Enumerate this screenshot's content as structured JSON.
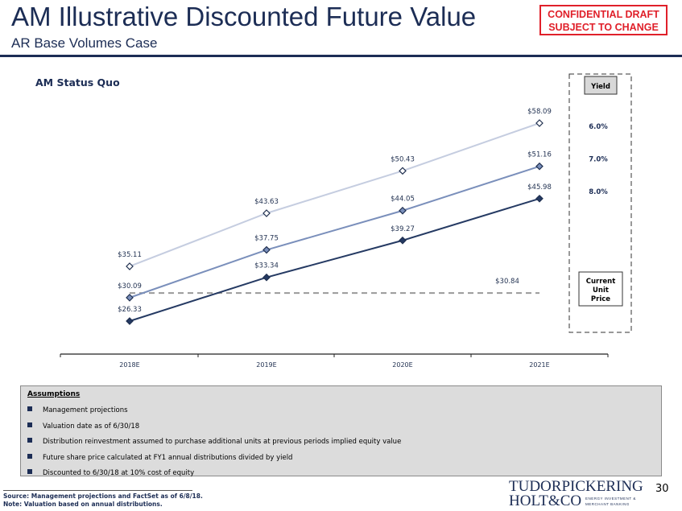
{
  "header": {
    "title": "AM Illustrative Discounted Future Value",
    "subtitle": "AR Base Volumes Case",
    "confidential_line1": "CONFIDENTIAL DRAFT",
    "confidential_line2": "SUBJECT TO CHANGE"
  },
  "section_label": "AM Status Quo",
  "legend": {
    "title": "Yield",
    "items": [
      "6.0%",
      "7.0%",
      "8.0%"
    ],
    "current_price_label": [
      "Current",
      "Unit",
      "Price"
    ]
  },
  "chart_data": {
    "type": "line",
    "categories": [
      "2018E",
      "2019E",
      "2020E",
      "2021E"
    ],
    "series": [
      {
        "name": "6.0%",
        "values": [
          35.11,
          43.63,
          50.43,
          58.09
        ],
        "labels": [
          "$35.11",
          "$43.63",
          "$50.43",
          "$58.09"
        ],
        "color": "#c5cde0"
      },
      {
        "name": "7.0%",
        "values": [
          30.09,
          37.75,
          44.05,
          51.16
        ],
        "labels": [
          "$30.09",
          "$37.75",
          "$44.05",
          "$51.16"
        ],
        "color": "#7a8fbb"
      },
      {
        "name": "8.0%",
        "values": [
          26.33,
          33.34,
          39.27,
          45.98
        ],
        "labels": [
          "$26.33",
          "$33.34",
          "$39.27",
          "$45.98"
        ],
        "color": "#253a63"
      }
    ],
    "reference_line": {
      "value": 30.84,
      "label": "$30.84",
      "style": "dashed",
      "color": "#9a9a9a"
    },
    "ylim": [
      22,
      65
    ],
    "grid": false
  },
  "assumptions": {
    "title": "Assumptions",
    "items": [
      "Management projections",
      "Valuation date as of 6/30/18",
      "Distribution reinvestment assumed to purchase additional units at previous periods implied equity value",
      "Future share price calculated at FY1 annual distributions divided by yield",
      "Discounted to 6/30/18 at 10% cost of equity"
    ]
  },
  "footnotes": {
    "source": "Source: Management projections and FactSet as of 6/8/18.",
    "note": "Note: Valuation based on annual distributions."
  },
  "logo": {
    "line1": "TUDORPICKERING",
    "line2": "HOLT&CO",
    "tag1": "ENERGY INVESTMENT &",
    "tag2": "MERCHANT BANKING"
  },
  "page_number": "30"
}
